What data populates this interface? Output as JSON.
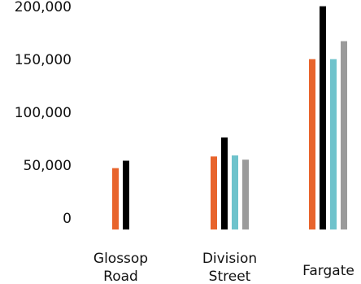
{
  "chart_data": {
    "type": "bar",
    "title": "",
    "xlabel": "",
    "ylabel": "",
    "ylim": [
      0,
      210000
    ],
    "grid": false,
    "legend": "none",
    "y_ticks": [
      "0",
      "50,000",
      "100,000",
      "150,000",
      "200,000"
    ],
    "y_tick_values": [
      0,
      50000,
      100000,
      150000,
      200000
    ],
    "categories": [
      {
        "lines": [
          "Glossop",
          "Road"
        ]
      },
      {
        "lines": [
          "Division",
          "Street"
        ]
      },
      {
        "lines": [
          "Fargate"
        ]
      }
    ],
    "series": [
      {
        "color": "#e8642c",
        "values": [
          58000,
          69000,
          161000
        ]
      },
      {
        "color": "#000000",
        "values": [
          65000,
          87000,
          211000
        ]
      },
      {
        "color": "#6fc3cc",
        "values": [
          null,
          70000,
          161000
        ]
      },
      {
        "color": "#9b9b9b",
        "values": [
          null,
          66000,
          178000
        ]
      }
    ]
  }
}
